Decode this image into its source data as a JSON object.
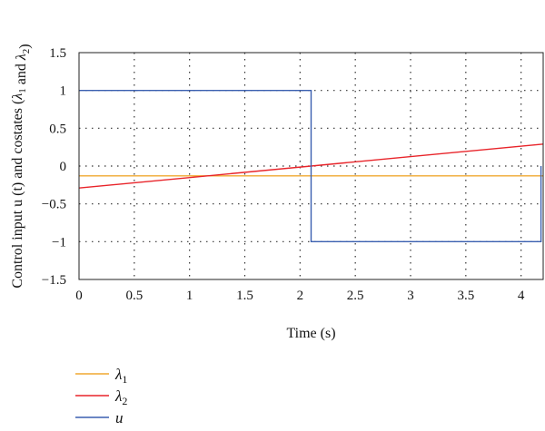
{
  "chart_data": {
    "type": "line",
    "xlabel": "Time (s)",
    "ylabel": "Control input u (t) and costates (λ1 and λ2)",
    "xlim": [
      0,
      4.2
    ],
    "ylim": [
      -1.5,
      1.5
    ],
    "grid": true,
    "grid_style": "dotted",
    "legend_position": "below-left",
    "xticks": [
      0,
      0.5,
      1,
      1.5,
      2,
      2.5,
      3,
      3.5,
      4
    ],
    "xtick_labels": [
      "0",
      "0.5",
      "1",
      "1.5",
      "2",
      "2.5",
      "3",
      "3.5",
      "4"
    ],
    "yticks": [
      -1.5,
      -1,
      -0.5,
      0,
      0.5,
      1,
      1.5
    ],
    "ytick_labels": [
      "−1.5",
      "−1",
      "−0.5",
      "0",
      "0.5",
      "1",
      "1.5"
    ],
    "series": [
      {
        "name": "λ1",
        "sub": "1",
        "color": "#f0a830",
        "x": [
          0,
          4.2
        ],
        "y": [
          -0.13,
          -0.13
        ]
      },
      {
        "name": "λ2",
        "sub": "2",
        "color": "#e8242a",
        "x": [
          0,
          4.2
        ],
        "y": [
          -0.29,
          0.29
        ]
      },
      {
        "name": "u",
        "sub": "",
        "color": "#3a5fb0",
        "x": [
          0,
          2.1,
          2.1,
          4.18,
          4.18
        ],
        "y": [
          1,
          1,
          -1,
          -1,
          0
        ]
      }
    ]
  }
}
